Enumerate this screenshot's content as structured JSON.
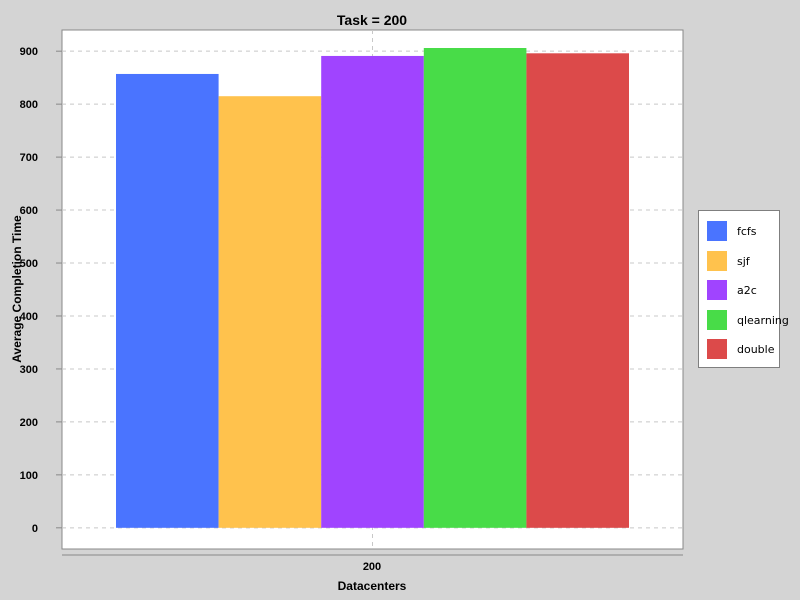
{
  "chart_data": {
    "type": "bar",
    "title": "Task = 200",
    "xlabel": "Datacenters",
    "ylabel": "Average Completion Time",
    "categories": [
      "200"
    ],
    "series": [
      {
        "name": "fcfs",
        "values": [
          857
        ],
        "color": "#4a74ff"
      },
      {
        "name": "sjf",
        "values": [
          815
        ],
        "color": "#ffc24d"
      },
      {
        "name": "a2c",
        "values": [
          891
        ],
        "color": "#a044ff"
      },
      {
        "name": "qlearning",
        "values": [
          906
        ],
        "color": "#48dc48"
      },
      {
        "name": "double",
        "values": [
          896
        ],
        "color": "#dc4a4a"
      }
    ],
    "ylim": [
      -40,
      940
    ],
    "yticks": [
      0,
      100,
      200,
      300,
      400,
      500,
      600,
      700,
      800,
      900
    ],
    "grid": true,
    "legend_position": "right"
  }
}
